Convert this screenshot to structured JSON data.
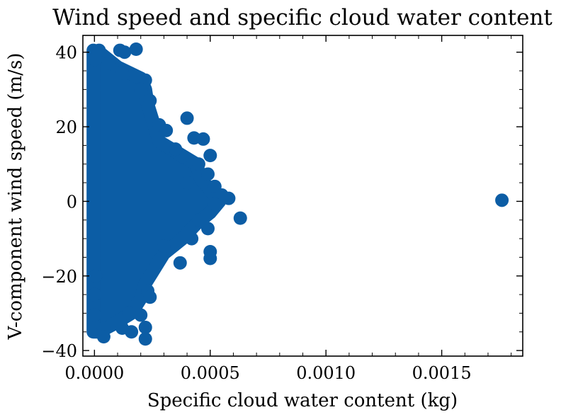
{
  "chart_data": {
    "type": "scatter",
    "title": "Wind speed and specific cloud water content",
    "xlabel": "Specific cloud water content (kg)",
    "ylabel": "V-component wind speed (m/s)",
    "xlim": [
      -5e-05,
      0.00185
    ],
    "ylim": [
      -41.5,
      44.5
    ],
    "x_ticks": [
      0.0,
      0.0005,
      0.001,
      0.0015
    ],
    "x_tick_labels": [
      "0.0000",
      "0.0005",
      "0.0010",
      "0.0015"
    ],
    "y_ticks": [
      -40,
      -20,
      0,
      20,
      40
    ],
    "y_tick_labels": [
      "−40",
      "−20",
      "0",
      "20",
      "40"
    ],
    "grid": false,
    "marker_color": "#0C5DA5",
    "points": [
      [
        0.0,
        38
      ],
      [
        2e-05,
        40.5
      ],
      [
        0.00011,
        40.5
      ],
      [
        0.00013,
        40
      ],
      [
        0.00018,
        40.8
      ],
      [
        6e-05,
        37
      ],
      [
        0.00012,
        34.5
      ],
      [
        0.00018,
        33.5
      ],
      [
        0.00022,
        32.5
      ],
      [
        0.0002,
        30
      ],
      [
        0.00024,
        27
      ],
      [
        0.00028,
        20.5
      ],
      [
        0.00031,
        19
      ],
      [
        0.0004,
        22.3
      ],
      [
        0.00043,
        17
      ],
      [
        0.00047,
        16.7
      ],
      [
        0.0005,
        12.3
      ],
      [
        0.00049,
        7.3
      ],
      [
        0.00052,
        4
      ],
      [
        0.00055,
        1.7
      ],
      [
        0.00058,
        0.8
      ],
      [
        0.00052,
        -0.8
      ],
      [
        0.00063,
        -4.5
      ],
      [
        0.00049,
        -7.3
      ],
      [
        0.0005,
        -13.5
      ],
      [
        0.0005,
        -15.3
      ],
      [
        0.00037,
        -16.5
      ],
      [
        0.00023,
        -24
      ],
      [
        0.00024,
        -25.7
      ],
      [
        0.00015,
        -30
      ],
      [
        0.0002,
        -30.5
      ],
      [
        0.00022,
        -33.8
      ],
      [
        0.00022,
        -36.9
      ],
      [
        0.00012,
        -34
      ],
      [
        4e-05,
        -34
      ],
      [
        4e-05,
        -36.3
      ],
      [
        0.00016,
        -35
      ],
      [
        0.0,
        -30.5
      ],
      [
        0.0,
        -25
      ],
      [
        5e-06,
        -20
      ],
      [
        0.0003,
        -12
      ],
      [
        0.00042,
        -10
      ],
      [
        0.00045,
        -5
      ],
      [
        0.0004,
        5
      ],
      [
        0.00038,
        12
      ],
      [
        0.00045,
        10
      ],
      [
        0.00035,
        14
      ],
      [
        0.00176,
        0.3
      ]
    ]
  }
}
